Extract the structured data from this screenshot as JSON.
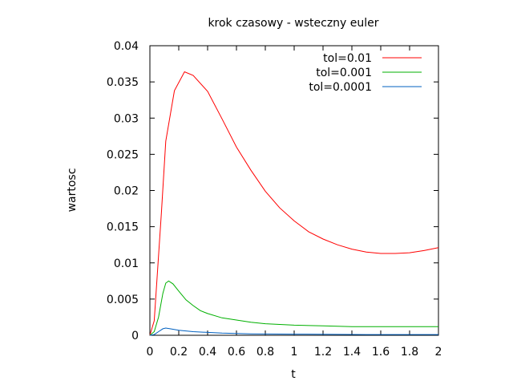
{
  "chart_data": {
    "type": "line",
    "title": "krok czasowy - wsteczny euler",
    "xlabel": "t",
    "ylabel": "wartosc",
    "xlim": [
      0,
      2
    ],
    "ylim": [
      0,
      0.04
    ],
    "xticks": [
      0,
      0.2,
      0.4,
      0.6,
      0.8,
      1,
      1.2,
      1.4,
      1.6,
      1.8,
      2
    ],
    "xtick_labels": [
      "0",
      "0.2",
      "0.4",
      "0.6",
      "0.8",
      "1",
      "1.2",
      "1.4",
      "1.6",
      "1.8",
      "2"
    ],
    "yticks": [
      0,
      0.005,
      0.01,
      0.015,
      0.02,
      0.025,
      0.03,
      0.035,
      0.04
    ],
    "ytick_labels": [
      "0",
      "0.005",
      "0.01",
      "0.015",
      "0.02",
      "0.025",
      "0.03",
      "0.035",
      "0.04"
    ],
    "grid": false,
    "legend_position": "top-right",
    "series": [
      {
        "name": "tol=0.01",
        "color": "#ff0000",
        "points": [
          [
            0,
            0
          ],
          [
            0.03,
            0.002
          ],
          [
            0.08,
            0.017
          ],
          [
            0.11,
            0.0268
          ],
          [
            0.17,
            0.0338
          ],
          [
            0.24,
            0.0364
          ],
          [
            0.3,
            0.0359
          ],
          [
            0.4,
            0.0337
          ],
          [
            0.5,
            0.0299
          ],
          [
            0.6,
            0.026
          ],
          [
            0.7,
            0.0228
          ],
          [
            0.8,
            0.0199
          ],
          [
            0.9,
            0.0176
          ],
          [
            1.0,
            0.0158
          ],
          [
            1.1,
            0.0143
          ],
          [
            1.2,
            0.0133
          ],
          [
            1.3,
            0.0125
          ],
          [
            1.4,
            0.0119
          ],
          [
            1.5,
            0.0115
          ],
          [
            1.6,
            0.0113
          ],
          [
            1.7,
            0.0113
          ],
          [
            1.8,
            0.0114
          ],
          [
            1.9,
            0.0117
          ],
          [
            2.0,
            0.0121
          ]
        ]
      },
      {
        "name": "tol=0.001",
        "color": "#00b000",
        "points": [
          [
            0,
            0
          ],
          [
            0.03,
            0.0005
          ],
          [
            0.06,
            0.0025
          ],
          [
            0.09,
            0.0058
          ],
          [
            0.11,
            0.0072
          ],
          [
            0.13,
            0.0075
          ],
          [
            0.16,
            0.0071
          ],
          [
            0.2,
            0.0061
          ],
          [
            0.25,
            0.0049
          ],
          [
            0.3,
            0.0041
          ],
          [
            0.35,
            0.0034
          ],
          [
            0.4,
            0.003
          ],
          [
            0.5,
            0.0024
          ],
          [
            0.6,
            0.0021
          ],
          [
            0.7,
            0.0018
          ],
          [
            0.8,
            0.0016
          ],
          [
            0.9,
            0.0015
          ],
          [
            1.0,
            0.0014
          ],
          [
            1.2,
            0.0013
          ],
          [
            1.4,
            0.0012
          ],
          [
            1.6,
            0.0012
          ],
          [
            1.8,
            0.0012
          ],
          [
            2.0,
            0.0012
          ]
        ]
      },
      {
        "name": "tol=0.0001",
        "color": "#0060c0",
        "points": [
          [
            0,
            0
          ],
          [
            0.03,
            0.0001
          ],
          [
            0.06,
            0.0005
          ],
          [
            0.09,
            0.0009
          ],
          [
            0.11,
            0.001
          ],
          [
            0.14,
            0.0009
          ],
          [
            0.2,
            0.0007
          ],
          [
            0.3,
            0.0005
          ],
          [
            0.4,
            0.0004
          ],
          [
            0.5,
            0.0003
          ],
          [
            0.7,
            0.0002
          ],
          [
            1.0,
            0.00015
          ],
          [
            1.5,
            0.0001
          ],
          [
            2.0,
            0.0001
          ]
        ]
      }
    ]
  }
}
